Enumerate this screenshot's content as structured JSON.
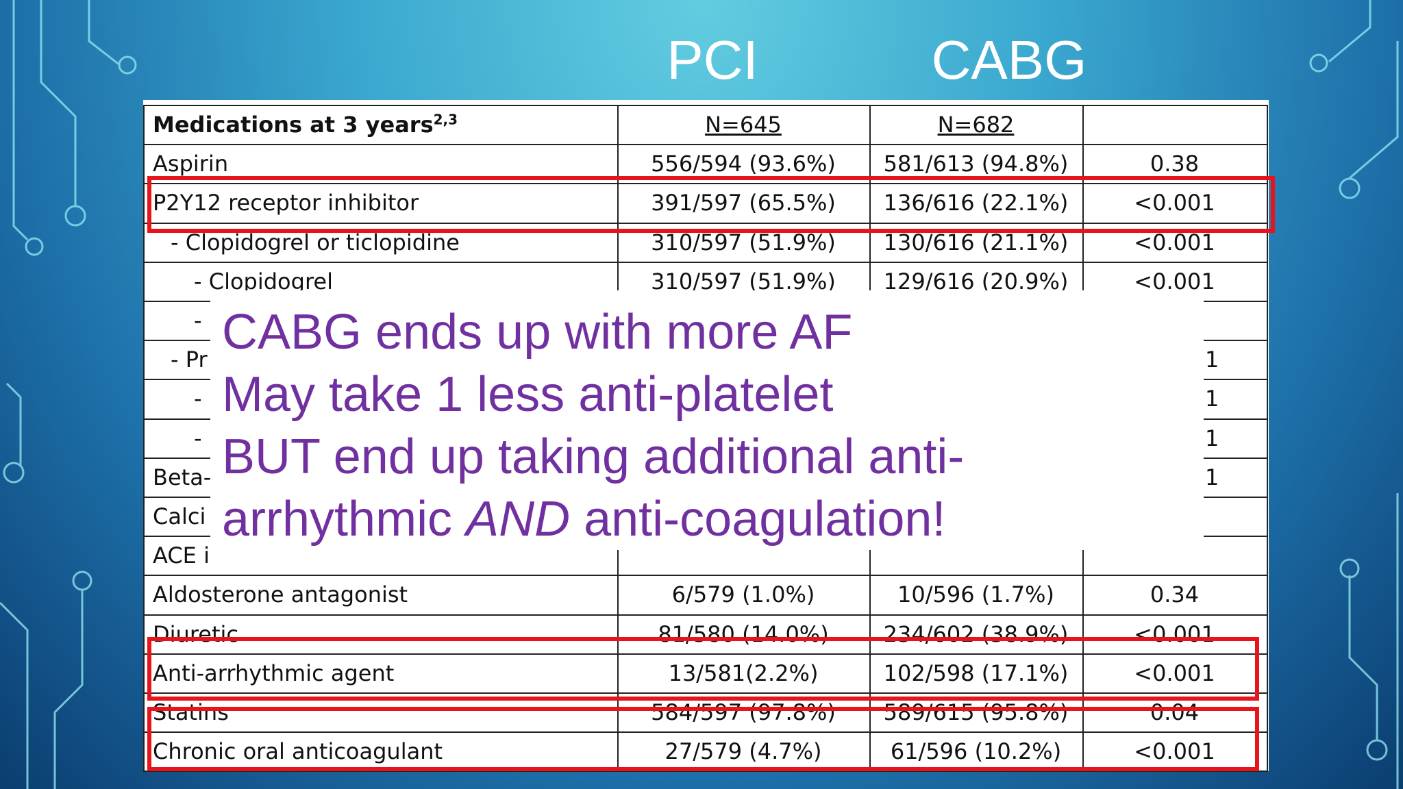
{
  "slide": {
    "column_headers": [
      "PCI",
      "CABG"
    ]
  },
  "table": {
    "header": {
      "label": "Medications at 3 years",
      "superscript": "2,3",
      "n": [
        "N=645",
        "N=682"
      ]
    },
    "rows": [
      [
        "Aspirin",
        "556/594 (93.6%)",
        "581/613 (94.8%)",
        "0.38"
      ],
      [
        "P2Y12 receptor inhibitor",
        "391/597 (65.5%)",
        "136/616 (22.1%)",
        "<0.001"
      ],
      [
        "- Clopidogrel or ticlopidine",
        "310/597 (51.9%)",
        "130/616 (21.1%)",
        "<0.001"
      ],
      [
        "- Clopidogrel",
        "310/597 (51.9%)",
        "129/616 (20.9%)",
        "<0.001"
      ],
      [
        "-",
        null,
        null,
        null
      ],
      [
        "- Pr",
        null,
        null,
        "1"
      ],
      [
        "-",
        null,
        null,
        "1"
      ],
      [
        "-",
        null,
        null,
        "1"
      ],
      [
        "Beta-",
        null,
        null,
        "1"
      ],
      [
        "Calci",
        null,
        null,
        null
      ],
      [
        "ACE i",
        null,
        null,
        null
      ],
      [
        "Aldosterone antagonist",
        "6/579 (1.0%)",
        "10/596 (1.7%)",
        "0.34"
      ],
      [
        "Diuretic",
        "81/580 (14.0%)",
        "234/602 (38.9%)",
        "<0.001"
      ],
      [
        "Anti-arrhythmic agent",
        "13/581(2.2%)",
        "102/598 (17.1%)",
        "<0.001"
      ],
      [
        "Statins",
        "584/597 (97.8%)",
        "589/615 (95.8%)",
        "0.04"
      ],
      [
        "Chronic oral anticoagulant",
        "27/579 (4.7%)",
        "61/596 (10.2%)",
        "<0.001"
      ]
    ]
  },
  "callout": {
    "lines": [
      [
        "CABG ends up with more AF"
      ],
      [
        "May take 1 less anti-platelet"
      ],
      [
        "BUT end up taking additional anti-"
      ],
      [
        "arrhythmic ",
        "AND",
        " anti-coagulation!"
      ]
    ]
  }
}
